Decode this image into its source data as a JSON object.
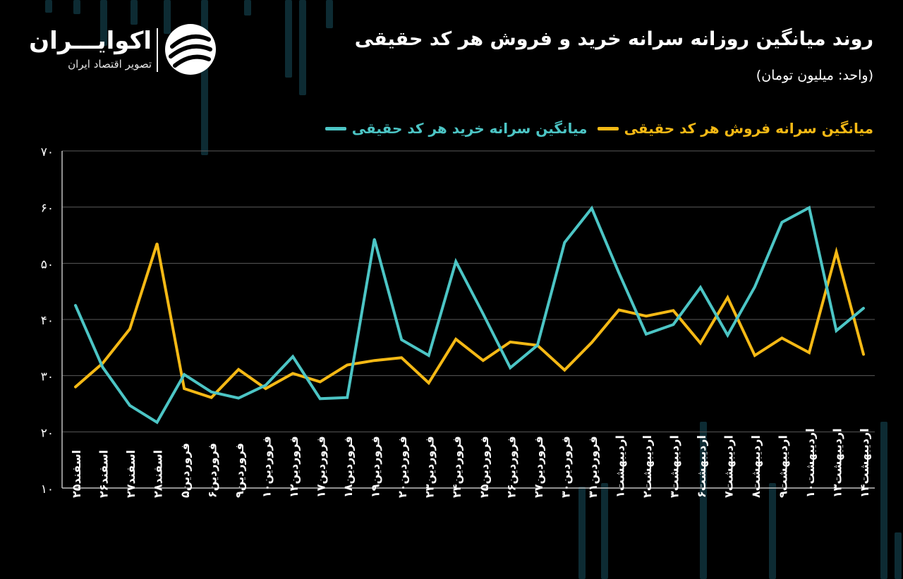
{
  "header": {
    "title": "روند میانگین روزانه سرانه خرید و فروش هر کد حقیقی",
    "unit": "(واحد: میلیون تومان)"
  },
  "logo": {
    "name": "اکوایـــران",
    "tagline": "تصویر اقتصاد ایران",
    "icon": "ekoiran-logo-icon"
  },
  "colors": {
    "background": "#000000",
    "buy": "#4cc5c5",
    "sell": "#f5b915",
    "grid": "#5a5a5a",
    "axis": "#bfbfbf",
    "background_bars": "#0d2b33"
  },
  "chart_data": {
    "type": "line",
    "title": "روند میانگین روزانه سرانه خرید و فروش هر کد حقیقی",
    "ylabel": "",
    "xlabel": "",
    "ylim": [
      10,
      70
    ],
    "yticks": [
      "۱۰",
      "۲۰",
      "۳۰",
      "۴۰",
      "۵۰",
      "۶۰",
      "۷۰"
    ],
    "ytick_values": [
      10,
      20,
      30,
      40,
      50,
      60,
      70
    ],
    "grid": true,
    "legend_position": "top-right",
    "categories": [
      "اسفند۲۵",
      "اسفند۲۶",
      "اسفند۲۷",
      "اسفند۲۸",
      "فروردین۵",
      "فروردین۶",
      "فروردین۹",
      "فروردین۱۰",
      "فروردین۱۲",
      "فروردین۱۷",
      "فروردین۱۸",
      "فروردین۱۹",
      "فروردین۲۰",
      "فروردین۲۳",
      "فروردین۲۴",
      "فروردین۲۵",
      "فروردین۲۶",
      "فروردین۲۷",
      "فروردین۳۰",
      "فروردین۳۱",
      "اردیبهشت۱",
      "اردیبهشت۲",
      "اردیبهشت۳",
      "اردیبهشت۶",
      "اردیبهشت۷",
      "اردیبهشت۸",
      "اردیبهشت۹",
      "اردیبهشت۱۰",
      "اردیبهشت۱۳",
      "اردیبهشت۱۴"
    ],
    "series": [
      {
        "name": "میانگین سرانه خرید هر کد حقیقی",
        "color": "#4cc5c5",
        "values": [
          42.5,
          31.5,
          24.7,
          21.7,
          30.2,
          27.1,
          26.0,
          28.3,
          33.4,
          25.9,
          26.1,
          54.3,
          36.4,
          33.6,
          50.3,
          41.0,
          31.4,
          35.4,
          53.7,
          59.8,
          48.3,
          37.4,
          39.1,
          45.7,
          37.2,
          45.8,
          57.3,
          59.9,
          38.0,
          42.0
        ]
      },
      {
        "name": "میانگین سرانه فروش هر کد حقیقی",
        "color": "#f5b915",
        "values": [
          28.0,
          32.2,
          38.3,
          53.5,
          27.7,
          26.1,
          31.1,
          27.7,
          30.4,
          28.9,
          31.9,
          32.7,
          33.2,
          28.7,
          36.5,
          32.7,
          36.0,
          35.4,
          31.0,
          35.9,
          41.7,
          40.6,
          41.6,
          35.8,
          43.9,
          33.6,
          36.7,
          34.1,
          52.0,
          33.8
        ]
      }
    ]
  }
}
